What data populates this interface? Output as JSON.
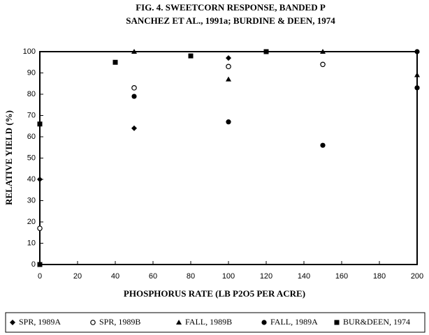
{
  "chart_data": {
    "type": "scatter",
    "title": "FIG. 4.  SWEETCORN RESPONSE, BANDED P",
    "subtitle": "SANCHEZ ET AL., 1991a; BURDINE & DEEN, 1974",
    "x_label": "PHOSPHORUS RATE (LB P2O5 PER ACRE)",
    "y_label": "RELATIVE YIELD (%)",
    "xlim": [
      0,
      200
    ],
    "xticks": [
      0,
      20,
      40,
      60,
      80,
      100,
      120,
      140,
      160,
      180,
      200
    ],
    "ylim": [
      0,
      100
    ],
    "yticks": [
      0,
      10,
      20,
      30,
      40,
      50,
      60,
      70,
      80,
      90,
      100
    ],
    "series": [
      {
        "name": "SPR, 1989A",
        "marker": "diamond",
        "color": "#000000",
        "x": [
          0,
          50,
          100
        ],
        "y": [
          40,
          64,
          97
        ]
      },
      {
        "name": "SPR, 1989B",
        "marker": "open-circle",
        "color": "#000000",
        "x": [
          0,
          50,
          100,
          150
        ],
        "y": [
          17,
          83,
          93,
          94
        ]
      },
      {
        "name": "FALL, 1989B",
        "marker": "triangle",
        "color": "#000000",
        "x": [
          50,
          100,
          150,
          200
        ],
        "y": [
          100,
          87,
          100,
          89
        ]
      },
      {
        "name": "FALL, 1989A",
        "marker": "circle",
        "color": "#000000",
        "x": [
          50,
          100,
          150,
          200,
          200
        ],
        "y": [
          79,
          67,
          56,
          100,
          83
        ]
      },
      {
        "name": "BUR&DEEN, 1974",
        "marker": "square",
        "color": "#000000",
        "x": [
          0,
          0,
          40,
          80,
          120
        ],
        "y": [
          66,
          0,
          95,
          98,
          100
        ]
      }
    ]
  }
}
